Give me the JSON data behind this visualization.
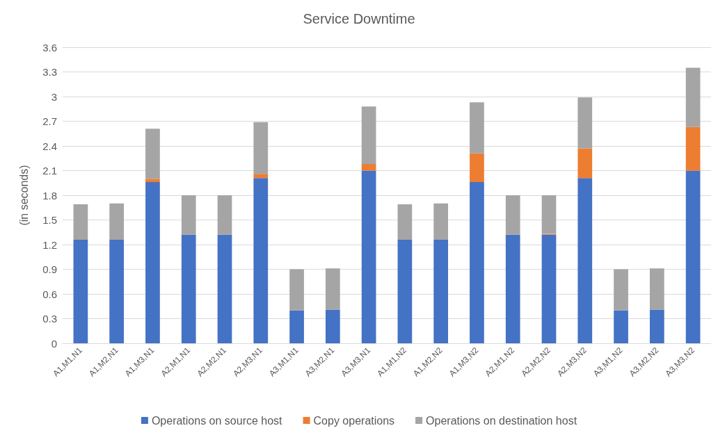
{
  "chart_data": {
    "type": "bar",
    "title": "Service Downtime",
    "ylabel": "(in seconds)",
    "stacked": true,
    "grid": "y",
    "legend": "bottom",
    "categories": [
      "A1,M1,N1",
      "A1,M2,N1",
      "A1,M3,N1",
      "A2,M1,N1",
      "A2,M2,N1",
      "A2,M3,N1",
      "A3,M1,N1",
      "A3,M2,N1",
      "A3,M3,N1",
      "A1,M1,N2",
      "A1,M2,N2",
      "A1,M3,N2",
      "A2,M1,N2",
      "A2,M2,N2",
      "A2,M3,N2",
      "A3,M1,N2",
      "A3,M2,N2",
      "A3,M3,N2"
    ],
    "ylim": [
      0,
      3.6
    ],
    "yticks": [
      0,
      0.3,
      0.6,
      0.9,
      1.2,
      1.5,
      1.8,
      2.1,
      2.4,
      2.7,
      3,
      3.3,
      3.6
    ],
    "series": [
      {
        "name": "Operations on source host",
        "color": "#4472c4",
        "values": [
          1.26,
          1.26,
          1.96,
          1.32,
          1.32,
          2.01,
          0.4,
          0.41,
          2.1,
          1.26,
          1.26,
          1.96,
          1.32,
          1.32,
          2.01,
          0.4,
          0.41,
          2.1
        ]
      },
      {
        "name": "Copy operations",
        "color": "#ed7d31",
        "values": [
          0,
          0,
          0.04,
          0,
          0,
          0.05,
          0,
          0,
          0.08,
          0,
          0,
          0.35,
          0,
          0.01,
          0.36,
          0,
          0,
          0.53
        ]
      },
      {
        "name": "Operations on destination host",
        "color": "#a5a5a5",
        "values": [
          0.43,
          0.44,
          0.61,
          0.48,
          0.48,
          0.63,
          0.5,
          0.5,
          0.7,
          0.43,
          0.44,
          0.62,
          0.48,
          0.47,
          0.62,
          0.5,
          0.5,
          0.72
        ]
      }
    ]
  }
}
